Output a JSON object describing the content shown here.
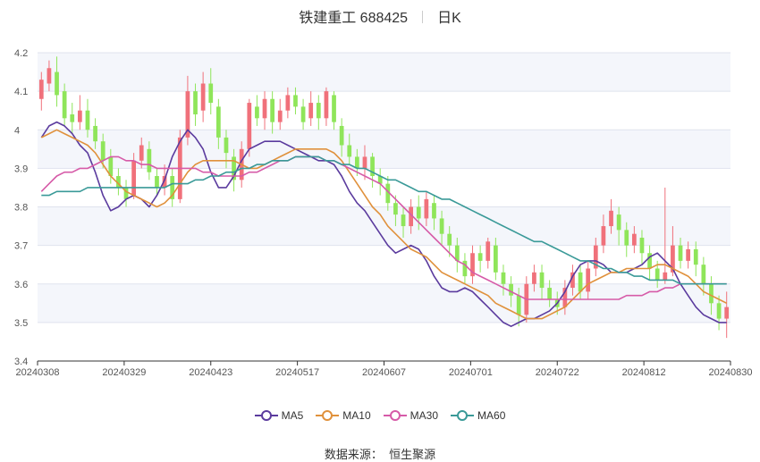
{
  "title": {
    "name": "铁建重工 688425",
    "period": "日K"
  },
  "source_label": "数据来源：",
  "source_name": "恒生聚源",
  "colors": {
    "up": "#f0717b",
    "down": "#8fe55a",
    "grid": "#dfe3ee",
    "band": "#f4f6fb",
    "axis": "#555555"
  },
  "chart_data": {
    "type": "candlestick",
    "y_range": [
      3.4,
      4.2
    ],
    "y_ticks": [
      "3.4",
      "3.5",
      "3.6",
      "3.7",
      "3.8",
      "3.9",
      "4",
      "4.1",
      "4.2"
    ],
    "x_ticks": [
      "20240308",
      "20240329",
      "20240423",
      "20240517",
      "20240607",
      "20240701",
      "20240722",
      "20240812",
      "20240830"
    ],
    "legend": [
      {
        "name": "MA5",
        "color": "#5b3b9e"
      },
      {
        "name": "MA10",
        "color": "#e0913c"
      },
      {
        "name": "MA30",
        "color": "#d65ba8"
      },
      {
        "name": "MA60",
        "color": "#3a9a98"
      }
    ],
    "candles_ohlc": [
      [
        4.08,
        4.13,
        4.15,
        4.05
      ],
      [
        4.12,
        4.16,
        4.18,
        4.1
      ],
      [
        4.15,
        4.09,
        4.19,
        4.06
      ],
      [
        4.1,
        4.03,
        4.12,
        4.01
      ],
      [
        4.04,
        4.02,
        4.07,
        3.99
      ],
      [
        4.02,
        4.05,
        4.09,
        4.0
      ],
      [
        4.05,
        4.0,
        4.08,
        3.98
      ],
      [
        4.01,
        3.97,
        4.03,
        3.95
      ],
      [
        3.97,
        3.92,
        3.99,
        3.9
      ],
      [
        3.93,
        3.88,
        3.95,
        3.86
      ],
      [
        3.88,
        3.85,
        3.9,
        3.83
      ],
      [
        3.85,
        3.82,
        3.87,
        3.8
      ],
      [
        3.83,
        3.92,
        3.94,
        3.82
      ],
      [
        3.92,
        3.96,
        3.98,
        3.9
      ],
      [
        3.95,
        3.89,
        3.97,
        3.87
      ],
      [
        3.88,
        3.85,
        3.9,
        3.83
      ],
      [
        3.85,
        3.88,
        3.91,
        3.83
      ],
      [
        3.88,
        3.82,
        3.9,
        3.8
      ],
      [
        3.82,
        3.98,
        4.0,
        3.81
      ],
      [
        3.98,
        4.1,
        4.14,
        3.96
      ],
      [
        4.1,
        4.04,
        4.12,
        4.01
      ],
      [
        4.05,
        4.12,
        4.15,
        4.02
      ],
      [
        4.12,
        4.07,
        4.16,
        4.04
      ],
      [
        4.06,
        3.98,
        4.08,
        3.95
      ],
      [
        3.98,
        3.94,
        4.0,
        3.9
      ],
      [
        3.93,
        3.87,
        3.95,
        3.84
      ],
      [
        3.87,
        3.95,
        3.97,
        3.85
      ],
      [
        3.95,
        4.07,
        4.08,
        3.93
      ],
      [
        4.06,
        4.03,
        4.09,
        4.01
      ],
      [
        4.03,
        4.08,
        4.1,
        4.0
      ],
      [
        4.08,
        4.02,
        4.1,
        3.99
      ],
      [
        4.02,
        4.05,
        4.08,
        4.0
      ],
      [
        4.05,
        4.09,
        4.11,
        4.03
      ],
      [
        4.09,
        4.06,
        4.11,
        4.04
      ],
      [
        4.06,
        4.02,
        4.08,
        4.0
      ],
      [
        4.03,
        4.07,
        4.1,
        4.01
      ],
      [
        4.07,
        4.03,
        4.09,
        4.0
      ],
      [
        4.03,
        4.1,
        4.11,
        4.01
      ],
      [
        4.09,
        4.02,
        4.1,
        4.0
      ],
      [
        4.01,
        3.96,
        4.03,
        3.93
      ],
      [
        3.96,
        3.93,
        3.99,
        3.91
      ],
      [
        3.93,
        3.9,
        3.95,
        3.88
      ],
      [
        3.9,
        3.93,
        3.96,
        3.87
      ],
      [
        3.93,
        3.88,
        3.94,
        3.85
      ],
      [
        3.88,
        3.86,
        3.9,
        3.83
      ],
      [
        3.86,
        3.81,
        3.88,
        3.79
      ],
      [
        3.81,
        3.78,
        3.83,
        3.75
      ],
      [
        3.78,
        3.75,
        3.8,
        3.72
      ],
      [
        3.75,
        3.8,
        3.82,
        3.73
      ],
      [
        3.8,
        3.77,
        3.83,
        3.74
      ],
      [
        3.77,
        3.82,
        3.84,
        3.75
      ],
      [
        3.81,
        3.77,
        3.83,
        3.74
      ],
      [
        3.77,
        3.73,
        3.79,
        3.7
      ],
      [
        3.73,
        3.7,
        3.75,
        3.67
      ],
      [
        3.7,
        3.66,
        3.72,
        3.63
      ],
      [
        3.66,
        3.62,
        3.68,
        3.6
      ],
      [
        3.62,
        3.68,
        3.7,
        3.6
      ],
      [
        3.68,
        3.66,
        3.7,
        3.63
      ],
      [
        3.66,
        3.71,
        3.72,
        3.64
      ],
      [
        3.7,
        3.63,
        3.72,
        3.61
      ],
      [
        3.63,
        3.6,
        3.65,
        3.57
      ],
      [
        3.6,
        3.57,
        3.62,
        3.54
      ],
      [
        3.57,
        3.52,
        3.59,
        3.49
      ],
      [
        3.52,
        3.6,
        3.62,
        3.5
      ],
      [
        3.6,
        3.63,
        3.65,
        3.58
      ],
      [
        3.63,
        3.59,
        3.65,
        3.56
      ],
      [
        3.59,
        3.56,
        3.61,
        3.54
      ],
      [
        3.56,
        3.54,
        3.58,
        3.52
      ],
      [
        3.54,
        3.59,
        3.61,
        3.52
      ],
      [
        3.59,
        3.63,
        3.65,
        3.57
      ],
      [
        3.63,
        3.58,
        3.65,
        3.56
      ],
      [
        3.58,
        3.64,
        3.66,
        3.56
      ],
      [
        3.64,
        3.7,
        3.72,
        3.62
      ],
      [
        3.7,
        3.75,
        3.78,
        3.68
      ],
      [
        3.75,
        3.79,
        3.82,
        3.73
      ],
      [
        3.78,
        3.74,
        3.8,
        3.7
      ],
      [
        3.74,
        3.7,
        3.76,
        3.67
      ],
      [
        3.7,
        3.73,
        3.75,
        3.68
      ],
      [
        3.72,
        3.68,
        3.74,
        3.65
      ],
      [
        3.68,
        3.64,
        3.7,
        3.61
      ],
      [
        3.64,
        3.61,
        3.66,
        3.59
      ],
      [
        3.61,
        3.63,
        3.85,
        3.6
      ],
      [
        3.63,
        3.7,
        3.75,
        3.62
      ],
      [
        3.7,
        3.66,
        3.72,
        3.64
      ],
      [
        3.66,
        3.69,
        3.71,
        3.64
      ],
      [
        3.69,
        3.65,
        3.71,
        3.62
      ],
      [
        3.65,
        3.6,
        3.67,
        3.57
      ],
      [
        3.6,
        3.55,
        3.62,
        3.52
      ],
      [
        3.55,
        3.51,
        3.57,
        3.48
      ],
      [
        3.51,
        3.54,
        3.58,
        3.46
      ]
    ],
    "ma5": [
      3.98,
      4.01,
      4.02,
      4.01,
      3.99,
      3.96,
      3.94,
      3.89,
      3.83,
      3.79,
      3.8,
      3.82,
      3.83,
      3.82,
      3.8,
      3.83,
      3.87,
      3.93,
      3.97,
      4.0,
      3.98,
      3.95,
      3.89,
      3.85,
      3.85,
      3.88,
      3.92,
      3.95,
      3.96,
      3.97,
      3.97,
      3.97,
      3.96,
      3.95,
      3.94,
      3.93,
      3.92,
      3.92,
      3.91,
      3.88,
      3.84,
      3.81,
      3.79,
      3.76,
      3.73,
      3.7,
      3.68,
      3.69,
      3.7,
      3.69,
      3.66,
      3.62,
      3.59,
      3.58,
      3.58,
      3.59,
      3.58,
      3.56,
      3.54,
      3.52,
      3.5,
      3.49,
      3.5,
      3.51,
      3.51,
      3.52,
      3.53,
      3.55,
      3.58,
      3.62,
      3.65,
      3.66,
      3.66,
      3.65,
      3.63,
      3.63,
      3.63,
      3.64,
      3.65,
      3.67,
      3.68,
      3.66,
      3.64,
      3.6,
      3.57,
      3.54,
      3.52,
      3.51,
      3.5,
      3.5
    ],
    "ma10": [
      3.98,
      3.99,
      4.0,
      3.99,
      3.98,
      3.97,
      3.96,
      3.94,
      3.91,
      3.88,
      3.86,
      3.84,
      3.83,
      3.82,
      3.81,
      3.8,
      3.81,
      3.83,
      3.86,
      3.89,
      3.91,
      3.92,
      3.92,
      3.92,
      3.92,
      3.92,
      3.91,
      3.9,
      3.9,
      3.91,
      3.92,
      3.93,
      3.94,
      3.95,
      3.95,
      3.95,
      3.95,
      3.95,
      3.94,
      3.92,
      3.89,
      3.86,
      3.83,
      3.8,
      3.78,
      3.75,
      3.73,
      3.71,
      3.69,
      3.68,
      3.67,
      3.65,
      3.63,
      3.62,
      3.61,
      3.6,
      3.59,
      3.58,
      3.57,
      3.55,
      3.54,
      3.53,
      3.52,
      3.51,
      3.51,
      3.51,
      3.52,
      3.53,
      3.54,
      3.56,
      3.58,
      3.6,
      3.61,
      3.62,
      3.63,
      3.63,
      3.64,
      3.64,
      3.64,
      3.64,
      3.65,
      3.65,
      3.64,
      3.63,
      3.62,
      3.6,
      3.58,
      3.57,
      3.56,
      3.55
    ],
    "ma30": [
      3.84,
      3.86,
      3.88,
      3.89,
      3.89,
      3.9,
      3.9,
      3.91,
      3.92,
      3.93,
      3.93,
      3.92,
      3.92,
      3.91,
      3.91,
      3.9,
      3.9,
      3.9,
      3.9,
      3.9,
      3.9,
      3.89,
      3.89,
      3.88,
      3.88,
      3.88,
      3.88,
      3.89,
      3.89,
      3.9,
      3.91,
      3.92,
      3.92,
      3.93,
      3.93,
      3.93,
      3.93,
      3.92,
      3.92,
      3.91,
      3.9,
      3.89,
      3.88,
      3.87,
      3.86,
      3.84,
      3.82,
      3.8,
      3.78,
      3.76,
      3.74,
      3.72,
      3.7,
      3.68,
      3.66,
      3.65,
      3.63,
      3.62,
      3.61,
      3.6,
      3.59,
      3.58,
      3.57,
      3.56,
      3.56,
      3.56,
      3.56,
      3.56,
      3.56,
      3.56,
      3.56,
      3.56,
      3.56,
      3.56,
      3.56,
      3.56,
      3.57,
      3.57,
      3.57,
      3.58,
      3.58,
      3.59,
      3.59,
      3.6,
      3.6,
      3.6,
      3.6,
      3.6,
      3.6,
      3.6
    ],
    "ma60": [
      3.83,
      3.83,
      3.84,
      3.84,
      3.84,
      3.84,
      3.85,
      3.85,
      3.85,
      3.85,
      3.85,
      3.85,
      3.85,
      3.85,
      3.85,
      3.85,
      3.85,
      3.86,
      3.86,
      3.86,
      3.87,
      3.87,
      3.88,
      3.88,
      3.89,
      3.89,
      3.9,
      3.9,
      3.91,
      3.91,
      3.92,
      3.92,
      3.92,
      3.93,
      3.93,
      3.93,
      3.93,
      3.92,
      3.92,
      3.91,
      3.91,
      3.9,
      3.9,
      3.89,
      3.88,
      3.87,
      3.87,
      3.86,
      3.85,
      3.84,
      3.84,
      3.83,
      3.82,
      3.82,
      3.81,
      3.8,
      3.79,
      3.78,
      3.77,
      3.76,
      3.75,
      3.74,
      3.73,
      3.72,
      3.71,
      3.71,
      3.7,
      3.69,
      3.68,
      3.67,
      3.66,
      3.66,
      3.65,
      3.64,
      3.64,
      3.63,
      3.63,
      3.62,
      3.62,
      3.61,
      3.61,
      3.61,
      3.61,
      3.6,
      3.6,
      3.6,
      3.6,
      3.6,
      3.6,
      3.6
    ]
  }
}
